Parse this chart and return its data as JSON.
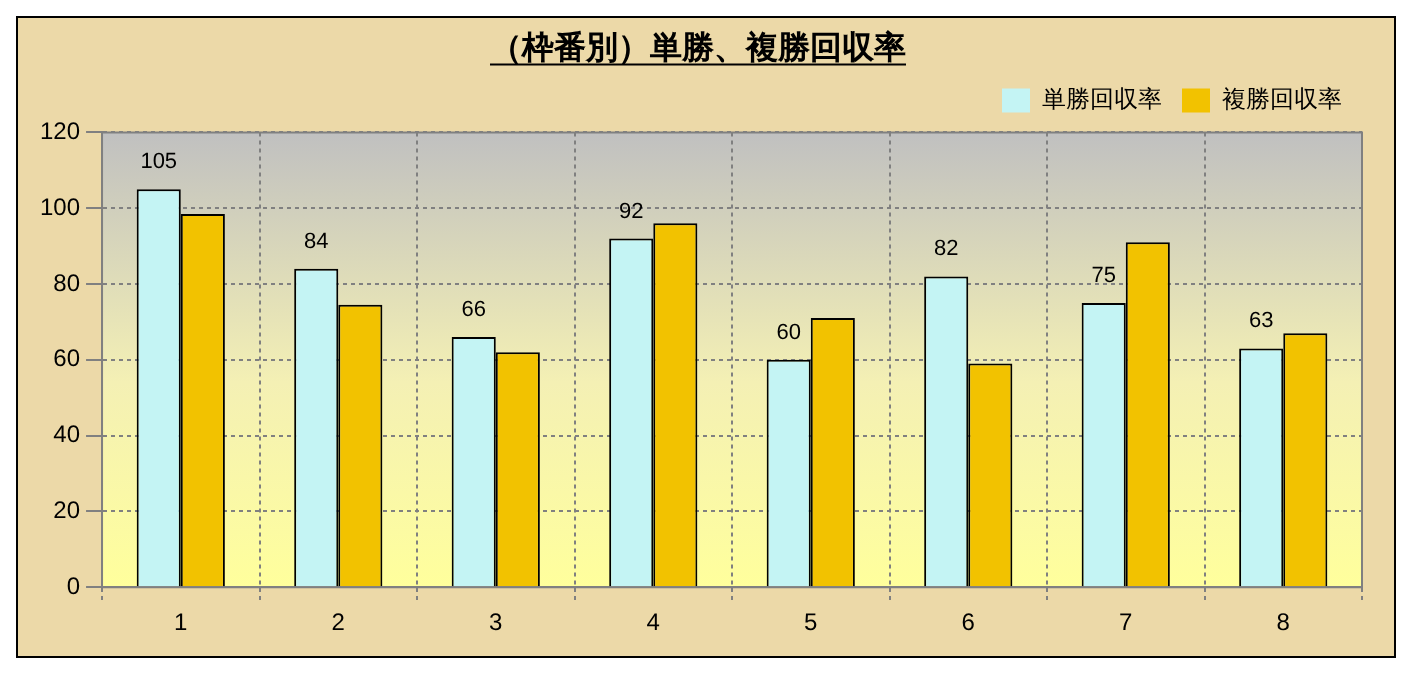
{
  "chart_data": {
    "type": "bar",
    "title": "（枠番別）単勝、複勝回収率",
    "categories": [
      "1",
      "2",
      "3",
      "4",
      "5",
      "6",
      "7",
      "8"
    ],
    "series": [
      {
        "name": "単勝回収率",
        "color": "#c4f4f4",
        "values": [
          105,
          84,
          66,
          92,
          60,
          82,
          75,
          63
        ],
        "value_labels": [
          "105",
          "84",
          "66",
          "92",
          "60",
          "82",
          "75",
          "63"
        ]
      },
      {
        "name": "複勝回収率",
        "color": "#f2c200",
        "values": [
          98.5,
          74.5,
          62,
          96,
          71,
          59,
          91,
          67
        ]
      }
    ],
    "ylim": [
      0,
      120
    ],
    "yticks": [
      0,
      20,
      40,
      60,
      80,
      100,
      120
    ],
    "grid": true,
    "legend": "top right"
  }
}
